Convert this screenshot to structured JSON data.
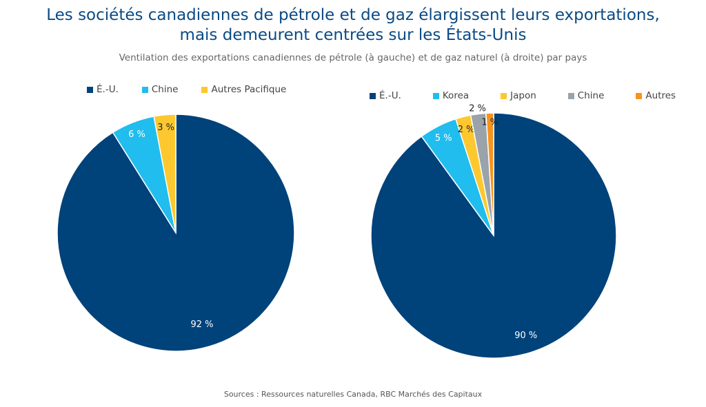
{
  "title_line1": "Les sociétés canadiennes de pétrole et de gaz élargissent leurs exportations,",
  "title_line2": "mais demeurent centrées sur les États-Unis",
  "subtitle": "Ventilation des exportations canadiennes de pétrole (à gauche) et de gaz naturel (à droite) par pays",
  "source": "Sources : Ressources naturelles Canada, RBC Marchés des Capitaux",
  "chart_data": [
    {
      "type": "pie",
      "legend": "top",
      "categories": [
        "É.-U.",
        "Chine",
        "Autres Pacifique"
      ],
      "values": [
        92,
        6,
        3
      ],
      "labels": [
        "92 %",
        "6 %",
        "3 %"
      ],
      "colors": [
        "#00427a",
        "#20bdee",
        "#fdc82f"
      ],
      "label_colors": [
        "#ffffff",
        "#ffffff",
        "#222222"
      ]
    },
    {
      "type": "pie",
      "legend": "top",
      "categories": [
        "É.-U.",
        "Korea",
        "Japon",
        "Chine",
        "Autres"
      ],
      "values": [
        90,
        5,
        2,
        2,
        1
      ],
      "labels": [
        "90 %",
        "5 %",
        "2 %",
        "2 %",
        "1 %"
      ],
      "colors": [
        "#00427a",
        "#20bdee",
        "#fdc82f",
        "#9aa3aa",
        "#f7941d"
      ],
      "label_colors": [
        "#ffffff",
        "#ffffff",
        "#222222",
        "#222222",
        "#222222"
      ]
    }
  ]
}
